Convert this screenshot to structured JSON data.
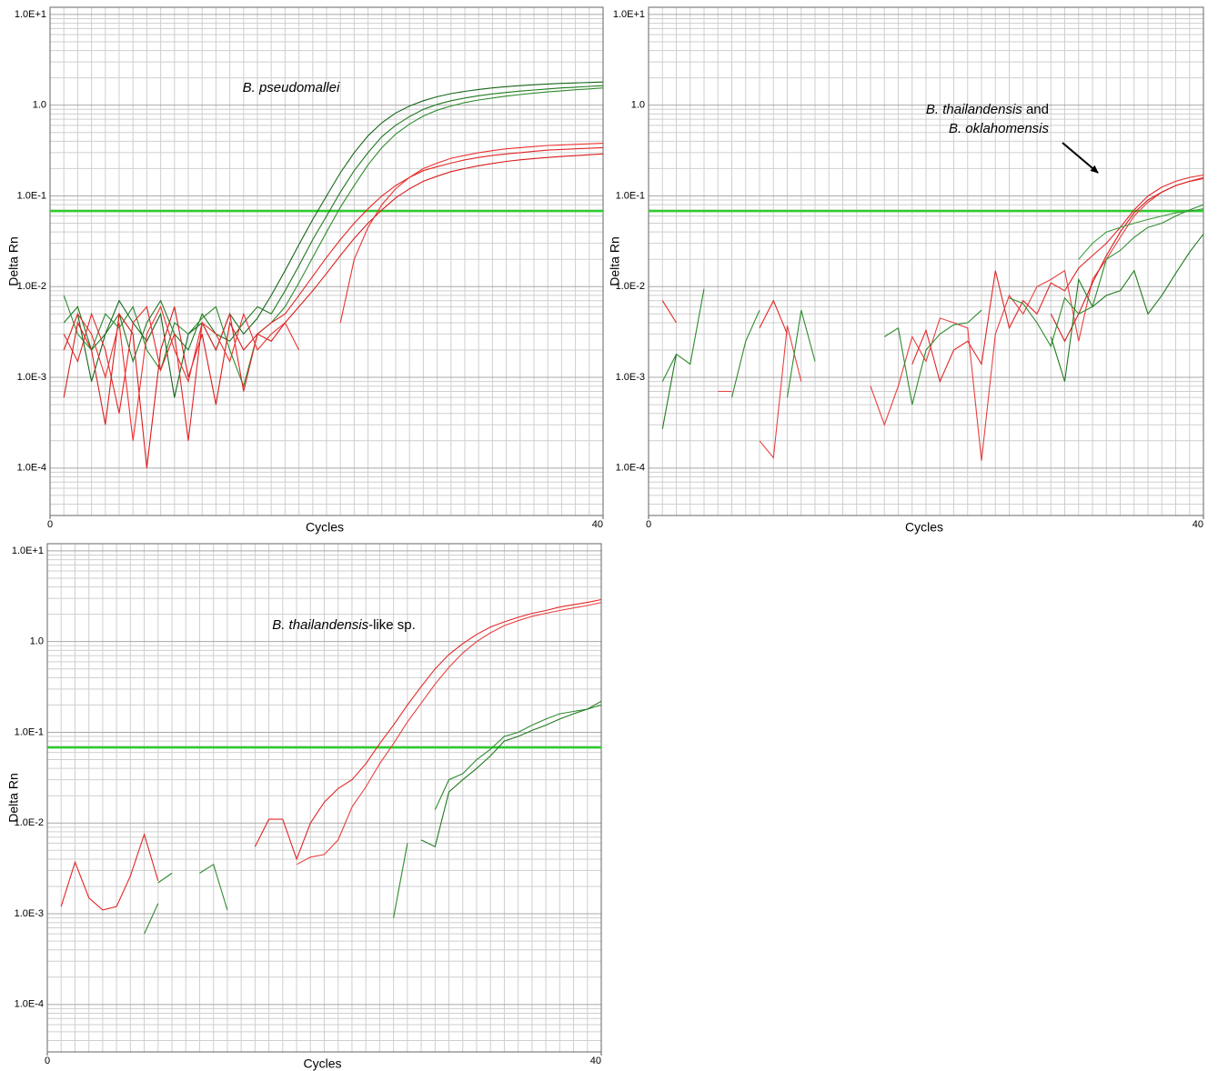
{
  "chart_data": [
    {
      "type": "line",
      "log_scale": true,
      "grid": true,
      "x_label": "Cycles",
      "y_label": "Delta Rn",
      "annotation": [
        [
          "B. pseudomallei"
        ]
      ],
      "xlim": [
        0,
        40
      ],
      "xticks": [
        0,
        40
      ],
      "ylim": [
        3e-05,
        12
      ],
      "yticks": [
        {
          "value": 10,
          "label": "1.0E+1"
        },
        {
          "value": 1,
          "label": "1.0"
        },
        {
          "value": 0.1,
          "label": "1.0E-1"
        },
        {
          "value": 0.01,
          "label": "1.0E-2"
        },
        {
          "value": 0.001,
          "label": "1.0E-3"
        },
        {
          "value": 0.0001,
          "label": "1.0E-4"
        }
      ],
      "threshold": 0.068,
      "threshold_color": "#2ecc2e",
      "x": [
        1,
        2,
        3,
        4,
        5,
        6,
        7,
        8,
        9,
        10,
        11,
        12,
        13,
        14,
        15,
        16,
        17,
        18,
        19,
        20,
        21,
        22,
        23,
        24,
        25,
        26,
        27,
        28,
        29,
        30,
        31,
        32,
        33,
        34,
        35,
        36,
        37,
        38,
        39,
        40
      ],
      "series": [
        {
          "color": "#1f7a1f",
          "values": [
            0.004,
            0.006,
            0.002,
            0.003,
            0.005,
            0.0015,
            0.004,
            0.007,
            0.003,
            0.002,
            0.005,
            0.003,
            0.0025,
            0.004,
            0.006,
            0.005,
            0.009,
            0.017,
            0.033,
            0.06,
            0.11,
            0.19,
            0.3,
            0.45,
            0.6,
            0.75,
            0.9,
            1.02,
            1.12,
            1.2,
            1.27,
            1.33,
            1.38,
            1.43,
            1.47,
            1.51,
            1.55,
            1.58,
            1.61,
            1.64
          ]
        },
        {
          "color": "#2e8b2e",
          "values": [
            0.008,
            0.003,
            0.002,
            0.005,
            0.0035,
            0.006,
            0.002,
            0.0012,
            0.004,
            0.003,
            0.0045,
            0.006,
            0.002,
            0.0008,
            0.003,
            0.004,
            0.006,
            0.011,
            0.021,
            0.04,
            0.075,
            0.13,
            0.22,
            0.34,
            0.48,
            0.62,
            0.76,
            0.88,
            0.98,
            1.07,
            1.14,
            1.2,
            1.26,
            1.31,
            1.36,
            1.4,
            1.44,
            1.48,
            1.51,
            1.55
          ]
        },
        {
          "color": "#16661a",
          "values": [
            0.002,
            0.005,
            0.0009,
            0.003,
            0.007,
            0.004,
            0.0025,
            0.005,
            0.0006,
            0.003,
            0.004,
            0.002,
            0.005,
            0.003,
            0.0045,
            0.008,
            0.015,
            0.029,
            0.055,
            0.1,
            0.18,
            0.3,
            0.46,
            0.64,
            0.82,
            0.98,
            1.12,
            1.24,
            1.34,
            1.42,
            1.49,
            1.55,
            1.6,
            1.64,
            1.68,
            1.71,
            1.74,
            1.76,
            1.78,
            1.8
          ]
        },
        {
          "color": "#e32626",
          "values": [
            0.003,
            0.0015,
            0.005,
            0.002,
            0.0004,
            0.004,
            0.006,
            0.0012,
            0.003,
            0.0002,
            0.004,
            0.002,
            0.005,
            0.0007,
            0.003,
            0.004,
            0.005,
            0.008,
            0.013,
            0.021,
            0.033,
            0.05,
            0.072,
            0.1,
            0.13,
            0.16,
            0.19,
            0.21,
            0.23,
            0.25,
            0.265,
            0.28,
            0.29,
            0.3,
            0.31,
            0.32,
            0.325,
            0.33,
            0.335,
            0.34
          ]
        },
        {
          "color": "#d81b1b",
          "values": [
            0.0006,
            0.004,
            0.002,
            0.0003,
            0.005,
            0.003,
            0.0001,
            0.002,
            0.006,
            0.001,
            0.003,
            0.0005,
            0.004,
            0.002,
            0.003,
            0.0025,
            0.004,
            0.006,
            0.009,
            0.014,
            0.022,
            0.034,
            0.05,
            0.07,
            0.095,
            0.12,
            0.145,
            0.165,
            0.185,
            0.2,
            0.215,
            0.228,
            0.24,
            0.25,
            0.258,
            0.265,
            0.272,
            0.278,
            0.284,
            0.29
          ]
        },
        {
          "color": "#ee3030",
          "values": [
            0.002,
            0.005,
            0.003,
            0.001,
            0.004,
            0.0002,
            0.003,
            0.006,
            0.002,
            0.0009,
            0.004,
            0.003,
            0.0015,
            0.005,
            0.002,
            0.003,
            0.004,
            0.002,
            null,
            null,
            0.004,
            0.02,
            0.045,
            0.08,
            0.12,
            0.16,
            0.2,
            0.23,
            0.26,
            0.28,
            0.3,
            0.315,
            0.33,
            0.34,
            0.35,
            0.36,
            0.365,
            0.37,
            0.375,
            0.38
          ]
        }
      ]
    },
    {
      "type": "line",
      "log_scale": true,
      "grid": true,
      "x_label": "Cycles",
      "y_label": "Delta Rn",
      "annotation": [
        [
          "B. thailandensis",
          " and"
        ],
        [
          "B. oklahomensis"
        ]
      ],
      "xlim": [
        0,
        40
      ],
      "xticks": [
        0,
        40
      ],
      "ylim": [
        3e-05,
        12
      ],
      "yticks": [
        {
          "value": 10,
          "label": "1.0E+1"
        },
        {
          "value": 1,
          "label": "1.0"
        },
        {
          "value": 0.1,
          "label": "1.0E-1"
        },
        {
          "value": 0.01,
          "label": "1.0E-2"
        },
        {
          "value": 0.001,
          "label": "1.0E-3"
        },
        {
          "value": 0.0001,
          "label": "1.0E-4"
        }
      ],
      "threshold": 0.068,
      "threshold_color": "#2ecc2e",
      "x": [
        1,
        2,
        3,
        4,
        5,
        6,
        7,
        8,
        9,
        10,
        11,
        12,
        13,
        14,
        15,
        16,
        17,
        18,
        19,
        20,
        21,
        22,
        23,
        24,
        25,
        26,
        27,
        28,
        29,
        30,
        31,
        32,
        33,
        34,
        35,
        36,
        37,
        38,
        39,
        40
      ],
      "series": [
        {
          "color": "#e32626",
          "values": [
            0.007,
            0.004,
            null,
            null,
            null,
            null,
            null,
            0.0035,
            0.007,
            0.003,
            null,
            null,
            null,
            null,
            null,
            null,
            null,
            null,
            0.0014,
            0.0033,
            0.0009,
            0.002,
            0.0025,
            0.0014,
            0.015,
            0.0035,
            0.007,
            0.005,
            0.011,
            0.009,
            0.016,
            0.022,
            0.03,
            0.045,
            0.07,
            0.1,
            0.125,
            0.145,
            0.16,
            0.17
          ]
        },
        {
          "color": "#e84040",
          "values": [
            null,
            null,
            null,
            null,
            0.0007,
            0.0007,
            null,
            0.0002,
            0.00013,
            0.0037,
            0.0009,
            null,
            null,
            null,
            null,
            0.0008,
            0.0003,
            0.0008,
            0.0028,
            0.0015,
            0.0045,
            0.004,
            0.0035,
            0.00012,
            0.003,
            0.008,
            0.005,
            0.01,
            0.012,
            0.015,
            0.0025,
            0.012,
            0.02,
            0.035,
            0.06,
            0.085,
            0.11,
            0.13,
            0.145,
            0.16
          ]
        },
        {
          "color": "#d81b1b",
          "values": [
            null,
            null,
            null,
            null,
            null,
            null,
            null,
            null,
            null,
            null,
            null,
            null,
            null,
            null,
            null,
            null,
            null,
            null,
            null,
            null,
            null,
            null,
            null,
            null,
            null,
            null,
            null,
            null,
            0.005,
            0.0025,
            0.005,
            0.011,
            0.022,
            0.04,
            0.065,
            0.09,
            0.11,
            0.13,
            0.145,
            0.155
          ]
        },
        {
          "color": "#2e8b2e",
          "values": [
            0.0009,
            0.0018,
            0.0014,
            0.0095,
            null,
            0.0006,
            0.0025,
            0.0055,
            null,
            0.0006,
            0.0055,
            0.0015,
            null,
            0.0005,
            null,
            null,
            0.0028,
            0.0035,
            0.0005,
            0.002,
            0.003,
            0.0038,
            0.004,
            0.0055,
            null,
            0.0075,
            0.0065,
            0.004,
            0.0022,
            0.0075,
            0.005,
            0.006,
            0.02,
            0.025,
            0.035,
            0.045,
            0.05,
            0.06,
            0.07,
            0.08
          ]
        },
        {
          "color": "#1f7a1f",
          "values": [
            0.00027,
            0.0018,
            null,
            null,
            null,
            null,
            null,
            null,
            null,
            null,
            null,
            null,
            null,
            null,
            null,
            null,
            null,
            null,
            null,
            null,
            null,
            null,
            null,
            null,
            null,
            null,
            null,
            null,
            0.0028,
            0.0009,
            0.012,
            0.006,
            0.008,
            0.009,
            0.015,
            0.005,
            0.008,
            0.014,
            0.024,
            0.038
          ]
        },
        {
          "color": "#3a9a3a",
          "values": [
            null,
            null,
            null,
            null,
            null,
            null,
            null,
            null,
            null,
            null,
            null,
            null,
            null,
            null,
            null,
            null,
            null,
            null,
            null,
            null,
            null,
            null,
            null,
            null,
            null,
            null,
            null,
            null,
            null,
            null,
            0.02,
            0.03,
            0.04,
            0.045,
            0.05,
            0.055,
            0.06,
            0.065,
            0.068,
            0.072
          ]
        }
      ]
    },
    {
      "type": "line",
      "log_scale": true,
      "grid": true,
      "x_label": "Cycles",
      "y_label": "Delta Rn",
      "annotation": [
        [
          "B. thailandensis",
          "-like sp."
        ]
      ],
      "xlim": [
        0,
        40
      ],
      "xticks": [
        0,
        40
      ],
      "ylim": [
        3e-05,
        12
      ],
      "yticks": [
        {
          "value": 10,
          "label": "1.0E+1"
        },
        {
          "value": 1,
          "label": "1.0"
        },
        {
          "value": 0.1,
          "label": "1.0E-1"
        },
        {
          "value": 0.01,
          "label": "1.0E-2"
        },
        {
          "value": 0.001,
          "label": "1.0E-3"
        },
        {
          "value": 0.0001,
          "label": "1.0E-4"
        }
      ],
      "threshold": 0.068,
      "threshold_color": "#2ecc2e",
      "x": [
        1,
        2,
        3,
        4,
        5,
        6,
        7,
        8,
        9,
        10,
        11,
        12,
        13,
        14,
        15,
        16,
        17,
        18,
        19,
        20,
        21,
        22,
        23,
        24,
        25,
        26,
        27,
        28,
        29,
        30,
        31,
        32,
        33,
        34,
        35,
        36,
        37,
        38,
        39,
        40
      ],
      "series": [
        {
          "color": "#e32626",
          "values": [
            0.0012,
            0.0037,
            0.0015,
            0.0011,
            0.0012,
            0.0026,
            0.0075,
            0.0023,
            null,
            null,
            null,
            null,
            null,
            null,
            0.0055,
            0.011,
            0.011,
            0.004,
            0.01,
            0.017,
            0.024,
            0.03,
            0.045,
            0.075,
            0.12,
            0.2,
            0.32,
            0.5,
            0.72,
            0.95,
            1.2,
            1.45,
            1.65,
            1.85,
            2.05,
            2.2,
            2.4,
            2.55,
            2.7,
            2.9
          ]
        },
        {
          "color": "#e84040",
          "values": [
            null,
            null,
            null,
            null,
            null,
            null,
            null,
            null,
            null,
            null,
            null,
            null,
            null,
            null,
            null,
            null,
            null,
            0.0035,
            0.0042,
            0.0045,
            0.0065,
            0.015,
            0.025,
            0.045,
            0.075,
            0.13,
            0.21,
            0.34,
            0.52,
            0.75,
            1.0,
            1.25,
            1.5,
            1.7,
            1.9,
            2.05,
            2.2,
            2.35,
            2.5,
            2.7
          ]
        },
        {
          "color": "#2e8b2e",
          "values": [
            null,
            null,
            null,
            null,
            null,
            null,
            0.0006,
            0.0013,
            null,
            null,
            0.0028,
            0.0035,
            0.0011,
            null,
            null,
            null,
            null,
            null,
            null,
            null,
            null,
            null,
            null,
            null,
            0.0009,
            0.006,
            null,
            0.014,
            0.03,
            0.035,
            0.05,
            0.065,
            0.09,
            0.1,
            0.12,
            0.14,
            0.16,
            0.17,
            0.18,
            0.2
          ]
        },
        {
          "color": "#1f7a1f",
          "values": [
            null,
            null,
            null,
            null,
            null,
            null,
            null,
            0.0022,
            0.0028,
            null,
            null,
            null,
            null,
            null,
            null,
            null,
            null,
            null,
            null,
            null,
            null,
            null,
            null,
            null,
            null,
            null,
            0.0065,
            0.0055,
            0.022,
            0.03,
            0.04,
            0.055,
            0.08,
            0.09,
            0.105,
            0.12,
            0.14,
            0.16,
            0.18,
            0.22
          ]
        }
      ]
    }
  ]
}
